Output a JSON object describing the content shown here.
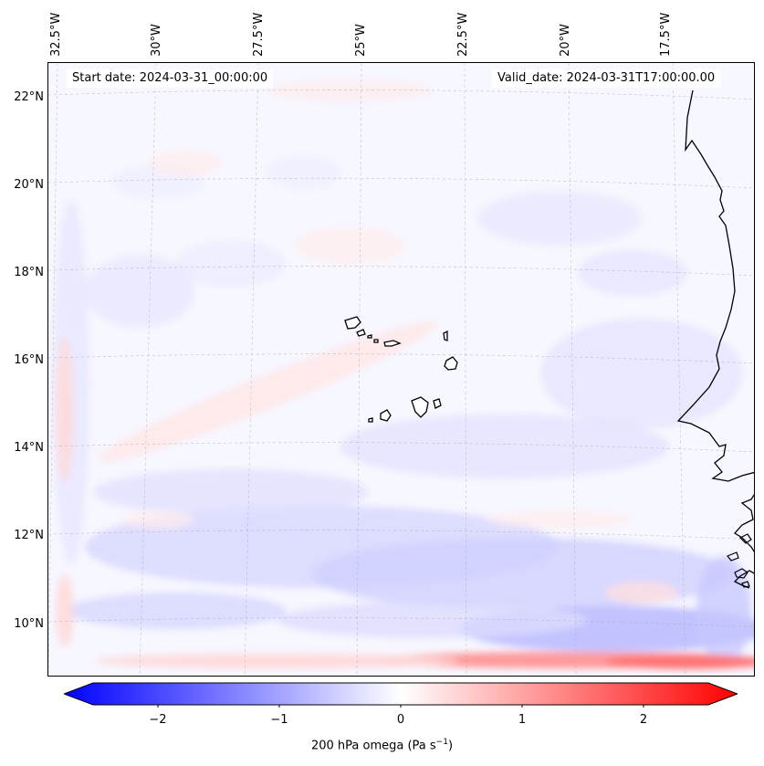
{
  "header": {
    "start_date": "Start date: 2024-03-31_00:00:00",
    "valid_date": "Valid_date: 2024-03-31T17:00:00.00"
  },
  "map": {
    "longitude_labels": [
      "32.5°W",
      "30°W",
      "27.5°W",
      "25°W",
      "22.5°W",
      "20°W",
      "17.5°W"
    ],
    "latitude_labels": [
      "22°N",
      "20°N",
      "18°N",
      "16°N",
      "14°N",
      "12°N",
      "10°N"
    ],
    "gridlines": true,
    "coastlines": "black",
    "field": "omega at 200 hPa"
  },
  "colorbar": {
    "tick_labels": [
      "−2",
      "−1",
      "0",
      "1",
      "2"
    ],
    "tick_values": [
      -2,
      -1,
      0,
      1,
      2
    ],
    "range": [
      -2.5,
      2.5
    ],
    "extend": "both",
    "label_main": "200 hPa omega (Pa s",
    "label_exp": "−1",
    "label_tail": ")",
    "colors": {
      "min": "#0000ff",
      "mid": "#ffffff",
      "max": "#ff0000"
    }
  }
}
